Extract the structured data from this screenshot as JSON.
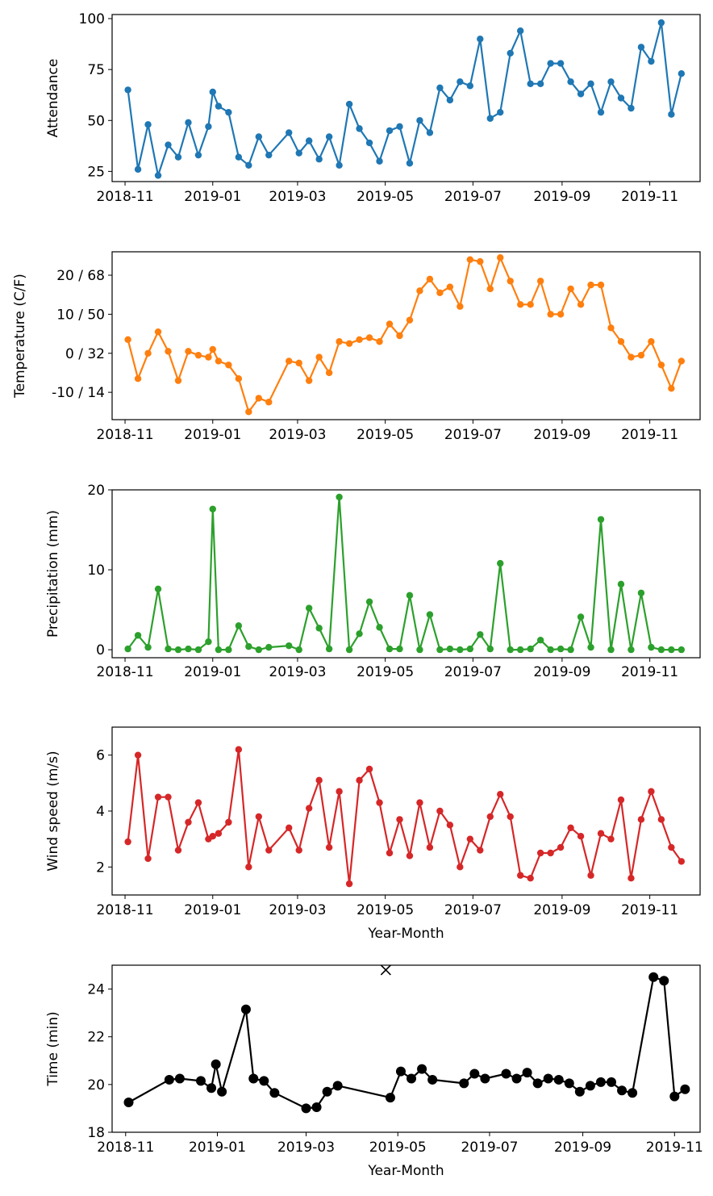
{
  "chart_data": [
    {
      "type": "line",
      "xlabel": "",
      "ylabel": "Attendance",
      "ylim": [
        20,
        102
      ],
      "yticks": [
        "25",
        "50",
        "75",
        "100"
      ],
      "ytick_values": [
        25,
        50,
        75,
        100
      ],
      "xtick_labels": [
        "2018-11",
        "2019-01",
        "2019-03",
        "2019-05",
        "2019-07",
        "2019-09",
        "2019-11"
      ],
      "color": "#1f77b4",
      "marker": "circle",
      "series": [
        {
          "x": [
            "2018-11-03",
            "2018-11-10",
            "2018-11-17",
            "2018-11-24",
            "2018-12-01",
            "2018-12-08",
            "2018-12-15",
            "2018-12-22",
            "2018-12-29",
            "2019-01-01",
            "2019-01-05",
            "2019-01-12",
            "2019-01-19",
            "2019-01-26",
            "2019-02-02",
            "2019-02-09",
            "2019-02-23",
            "2019-03-02",
            "2019-03-09",
            "2019-03-16",
            "2019-03-23",
            "2019-03-30",
            "2019-04-06",
            "2019-04-13",
            "2019-04-20",
            "2019-04-27",
            "2019-05-04",
            "2019-05-11",
            "2019-05-18",
            "2019-05-25",
            "2019-06-01",
            "2019-06-08",
            "2019-06-15",
            "2019-06-22",
            "2019-06-29",
            "2019-07-06",
            "2019-07-13",
            "2019-07-20",
            "2019-07-27",
            "2019-08-03",
            "2019-08-10",
            "2019-08-17",
            "2019-08-24",
            "2019-08-31",
            "2019-09-07",
            "2019-09-14",
            "2019-09-21",
            "2019-09-28",
            "2019-10-05",
            "2019-10-12",
            "2019-10-19",
            "2019-10-26",
            "2019-11-02",
            "2019-11-09",
            "2019-11-16",
            "2019-11-23"
          ],
          "values": [
            65,
            26,
            48,
            23,
            38,
            32,
            49,
            33,
            47,
            64,
            57,
            54,
            32,
            28,
            42,
            33,
            44,
            34,
            40,
            31,
            42,
            28,
            58,
            46,
            39,
            30,
            45,
            47,
            29,
            50,
            44,
            66,
            60,
            69,
            67,
            90,
            51,
            54,
            83,
            94,
            68,
            68,
            78,
            78,
            69,
            63,
            68,
            54,
            69,
            61,
            56,
            86,
            79,
            98,
            53,
            73
          ]
        }
      ]
    },
    {
      "type": "line",
      "xlabel": "",
      "ylabel": "Temperature (C/F)",
      "ylim": [
        -17,
        26
      ],
      "yticks": [
        "-10 / 14",
        "0 / 32",
        "10 / 50",
        "20 / 68"
      ],
      "ytick_values": [
        -10,
        0,
        10,
        20
      ],
      "xtick_labels": [
        "2018-11",
        "2019-01",
        "2019-03",
        "2019-05",
        "2019-07",
        "2019-09",
        "2019-11"
      ],
      "color": "#ff7f0e",
      "marker": "circle",
      "series": [
        {
          "x": [
            "2018-11-03",
            "2018-11-10",
            "2018-11-17",
            "2018-11-24",
            "2018-12-01",
            "2018-12-08",
            "2018-12-15",
            "2018-12-22",
            "2018-12-29",
            "2019-01-01",
            "2019-01-05",
            "2019-01-12",
            "2019-01-19",
            "2019-01-26",
            "2019-02-02",
            "2019-02-09",
            "2019-02-23",
            "2019-03-02",
            "2019-03-09",
            "2019-03-16",
            "2019-03-23",
            "2019-03-30",
            "2019-04-06",
            "2019-04-13",
            "2019-04-20",
            "2019-04-27",
            "2019-05-04",
            "2019-05-11",
            "2019-05-18",
            "2019-05-25",
            "2019-06-01",
            "2019-06-08",
            "2019-06-15",
            "2019-06-22",
            "2019-06-29",
            "2019-07-06",
            "2019-07-13",
            "2019-07-20",
            "2019-07-27",
            "2019-08-03",
            "2019-08-10",
            "2019-08-17",
            "2019-08-24",
            "2019-08-31",
            "2019-09-07",
            "2019-09-14",
            "2019-09-21",
            "2019-09-28",
            "2019-10-05",
            "2019-10-12",
            "2019-10-19",
            "2019-10-26",
            "2019-11-02",
            "2019-11-09",
            "2019-11-16",
            "2019-11-23"
          ],
          "values": [
            3.5,
            -6.5,
            0,
            5.5,
            0.5,
            -7,
            0.5,
            -0.5,
            -1,
            1,
            -2,
            -3,
            -6.5,
            -15,
            -11.5,
            -12.5,
            -2,
            -2.5,
            -7,
            -1,
            -5,
            3,
            2.5,
            3.5,
            4,
            3,
            7.5,
            4.5,
            8.5,
            16,
            19,
            15.5,
            17,
            12,
            24,
            23.5,
            16.5,
            24.5,
            18.5,
            12.5,
            12.5,
            18.5,
            10,
            10,
            16.5,
            12.5,
            17.5,
            17.5,
            6.5,
            3,
            -1,
            -0.5,
            3,
            -3,
            -9,
            -2
          ]
        }
      ]
    },
    {
      "type": "line",
      "xlabel": "",
      "ylabel": "Precipitation (mm)",
      "ylim": [
        -1,
        20
      ],
      "yticks": [
        "0",
        "10",
        "20"
      ],
      "ytick_values": [
        0,
        10,
        20
      ],
      "xtick_labels": [
        "2018-11",
        "2019-01",
        "2019-03",
        "2019-05",
        "2019-07",
        "2019-09",
        "2019-11"
      ],
      "color": "#2ca02c",
      "marker": "circle",
      "series": [
        {
          "x": [
            "2018-11-03",
            "2018-11-10",
            "2018-11-17",
            "2018-11-24",
            "2018-12-01",
            "2018-12-08",
            "2018-12-15",
            "2018-12-22",
            "2018-12-29",
            "2019-01-01",
            "2019-01-05",
            "2019-01-12",
            "2019-01-19",
            "2019-01-26",
            "2019-02-02",
            "2019-02-09",
            "2019-02-23",
            "2019-03-02",
            "2019-03-09",
            "2019-03-16",
            "2019-03-23",
            "2019-03-30",
            "2019-04-06",
            "2019-04-13",
            "2019-04-20",
            "2019-04-27",
            "2019-05-04",
            "2019-05-11",
            "2019-05-18",
            "2019-05-25",
            "2019-06-01",
            "2019-06-08",
            "2019-06-15",
            "2019-06-22",
            "2019-06-29",
            "2019-07-06",
            "2019-07-13",
            "2019-07-20",
            "2019-07-27",
            "2019-08-03",
            "2019-08-10",
            "2019-08-17",
            "2019-08-24",
            "2019-08-31",
            "2019-09-07",
            "2019-09-14",
            "2019-09-21",
            "2019-09-28",
            "2019-10-05",
            "2019-10-12",
            "2019-10-19",
            "2019-10-26",
            "2019-11-02",
            "2019-11-09",
            "2019-11-16",
            "2019-11-23"
          ],
          "values": [
            0.1,
            1.8,
            0.3,
            7.6,
            0.1,
            0,
            0.1,
            0,
            1,
            17.6,
            0,
            0,
            3,
            0.4,
            0,
            0.3,
            0.5,
            0,
            5.2,
            2.7,
            0.1,
            19.1,
            0,
            2,
            6,
            2.8,
            0.1,
            0.1,
            6.8,
            0,
            4.4,
            0,
            0.1,
            0,
            0.1,
            1.9,
            0.1,
            10.8,
            0,
            0,
            0.1,
            1.2,
            0,
            0.1,
            0,
            4.1,
            0.3,
            16.3,
            0,
            8.2,
            0,
            7.1,
            0.3,
            0,
            0,
            0
          ]
        }
      ]
    },
    {
      "type": "line",
      "xlabel": "Year-Month",
      "ylabel": "Wind speed (m/s)",
      "ylim": [
        1,
        7
      ],
      "yticks": [
        "2",
        "4",
        "6"
      ],
      "ytick_values": [
        2,
        4,
        6
      ],
      "xtick_labels": [
        "2018-11",
        "2019-01",
        "2019-03",
        "2019-05",
        "2019-07",
        "2019-09",
        "2019-11"
      ],
      "color": "#d62728",
      "marker": "circle",
      "series": [
        {
          "x": [
            "2018-11-03",
            "2018-11-10",
            "2018-11-17",
            "2018-11-24",
            "2018-12-01",
            "2018-12-08",
            "2018-12-15",
            "2018-12-22",
            "2018-12-29",
            "2019-01-01",
            "2019-01-05",
            "2019-01-12",
            "2019-01-19",
            "2019-01-26",
            "2019-02-02",
            "2019-02-09",
            "2019-02-23",
            "2019-03-02",
            "2019-03-09",
            "2019-03-16",
            "2019-03-23",
            "2019-03-30",
            "2019-04-06",
            "2019-04-13",
            "2019-04-20",
            "2019-04-27",
            "2019-05-04",
            "2019-05-11",
            "2019-05-18",
            "2019-05-25",
            "2019-06-01",
            "2019-06-08",
            "2019-06-15",
            "2019-06-22",
            "2019-06-29",
            "2019-07-06",
            "2019-07-13",
            "2019-07-20",
            "2019-07-27",
            "2019-08-03",
            "2019-08-10",
            "2019-08-17",
            "2019-08-24",
            "2019-08-31",
            "2019-09-07",
            "2019-09-14",
            "2019-09-21",
            "2019-09-28",
            "2019-10-05",
            "2019-10-12",
            "2019-10-19",
            "2019-10-26",
            "2019-11-02",
            "2019-11-09",
            "2019-11-16",
            "2019-11-23"
          ],
          "values": [
            2.9,
            6,
            2.3,
            4.5,
            4.5,
            2.6,
            3.6,
            4.3,
            3,
            3.1,
            3.2,
            3.6,
            6.2,
            2,
            3.8,
            2.6,
            3.4,
            2.6,
            4.1,
            5.1,
            2.7,
            4.7,
            1.4,
            5.1,
            5.5,
            4.3,
            2.5,
            3.7,
            2.4,
            4.3,
            2.7,
            4,
            3.5,
            2,
            3,
            2.6,
            3.8,
            4.6,
            3.8,
            1.7,
            1.6,
            2.5,
            2.5,
            2.7,
            3.4,
            3.1,
            1.7,
            3.2,
            3,
            4.4,
            1.6,
            3.7,
            4.7,
            3.7,
            2.7,
            2.2
          ]
        }
      ]
    },
    {
      "type": "line",
      "xlabel": "Year-Month",
      "ylabel": "Time (min)",
      "ylim": [
        18,
        25
      ],
      "yticks": [
        "18",
        "20",
        "22",
        "24"
      ],
      "ytick_values": [
        18,
        20,
        22,
        24
      ],
      "xtick_labels": [
        "2018-11",
        "2019-01",
        "2019-03",
        "2019-05",
        "2019-07",
        "2019-09",
        "2019-11"
      ],
      "color": "#000000",
      "marker": "circle",
      "series": [
        {
          "x": [
            "2018-11-03",
            "2018-11-30",
            "2018-12-07",
            "2018-12-21",
            "2018-12-28",
            "2018-12-31",
            "2019-01-04",
            "2019-01-20",
            "2019-01-25",
            "2019-02-01",
            "2019-02-08",
            "2019-03-01",
            "2019-03-08",
            "2019-03-15",
            "2019-03-22",
            "2019-04-26",
            "2019-05-03",
            "2019-05-10",
            "2019-05-17",
            "2019-05-24",
            "2019-06-14",
            "2019-06-21",
            "2019-06-28",
            "2019-07-12",
            "2019-07-19",
            "2019-07-26",
            "2019-08-02",
            "2019-08-09",
            "2019-08-16",
            "2019-08-23",
            "2019-08-30",
            "2019-09-06",
            "2019-09-13",
            "2019-09-20",
            "2019-09-27",
            "2019-10-04",
            "2019-10-18",
            "2019-10-25",
            "2019-11-01",
            "2019-11-08"
          ],
          "values": [
            19.25,
            20.2,
            20.25,
            20.15,
            19.85,
            20.85,
            19.7,
            23.15,
            20.25,
            20.15,
            19.65,
            19,
            19.05,
            19.7,
            19.95,
            19.45,
            20.55,
            20.25,
            20.65,
            20.2,
            20.05,
            20.45,
            20.25,
            20.45,
            20.25,
            20.5,
            20.05,
            20.25,
            20.2,
            20.05,
            19.7,
            19.95,
            20.1,
            20.1,
            19.75,
            19.65,
            24.5,
            24.35,
            19.5,
            19.8
          ]
        }
      ],
      "outlier": {
        "x": "2019-04-23",
        "value": 24.8,
        "marker": "x"
      }
    }
  ]
}
